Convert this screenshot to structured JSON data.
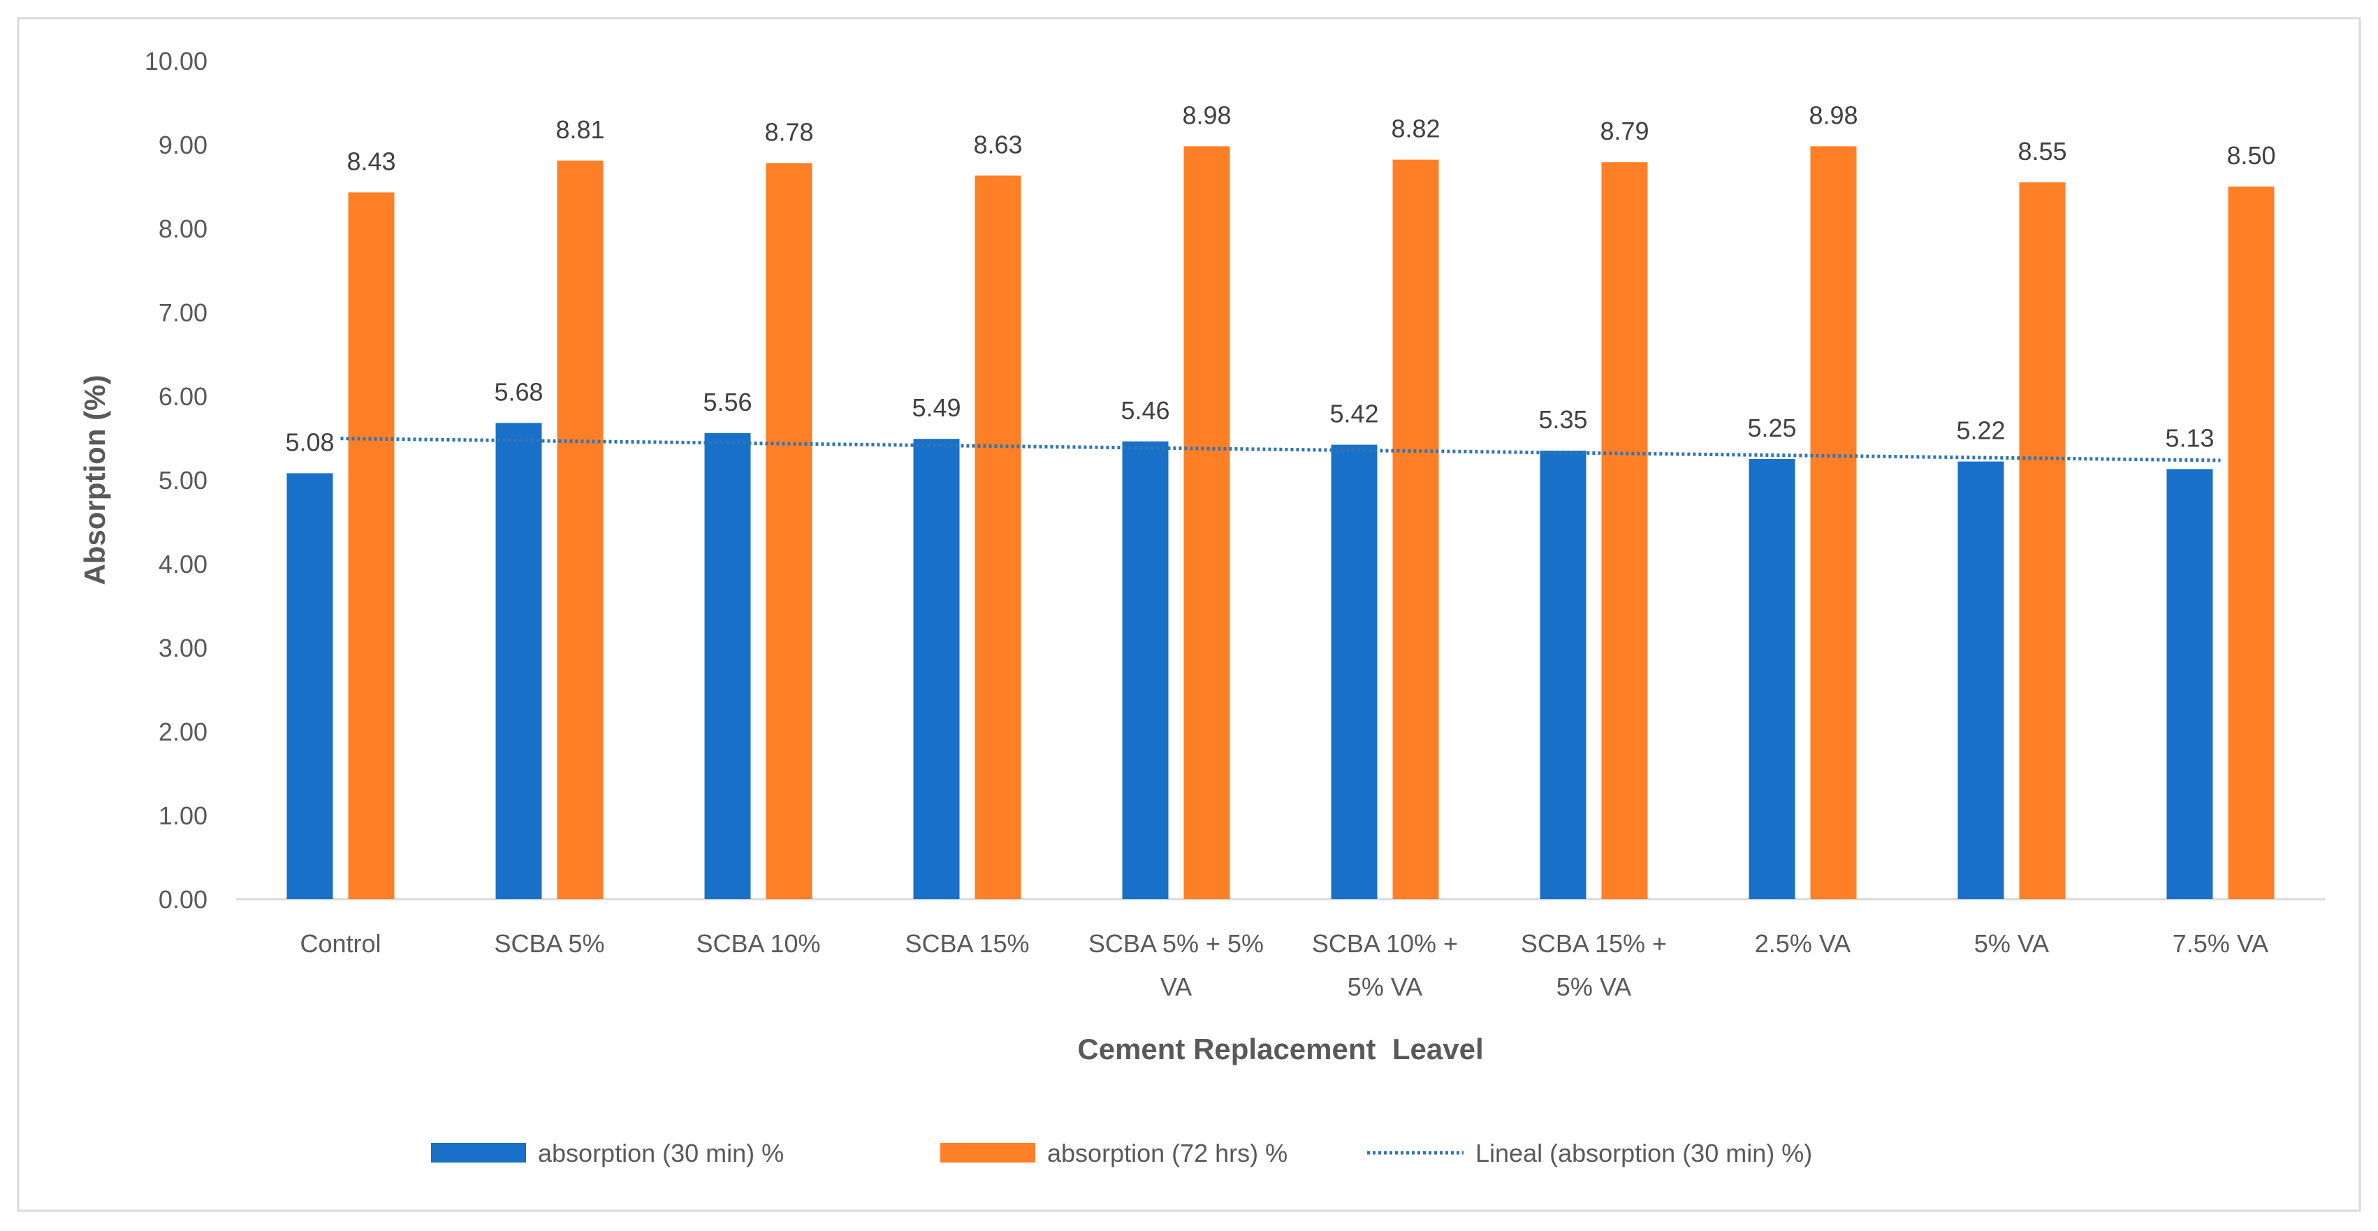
{
  "chart_data": {
    "type": "bar",
    "title": "",
    "xlabel": "Cement Replacement  Leavel",
    "ylabel": "Absorption (%)",
    "ylim": [
      0,
      10
    ],
    "yticks": [
      "0.00",
      "1.00",
      "2.00",
      "3.00",
      "4.00",
      "5.00",
      "6.00",
      "7.00",
      "8.00",
      "9.00",
      "10.00"
    ],
    "grid": false,
    "legend_position": "bottom",
    "categories": [
      [
        "Control"
      ],
      [
        "SCBA 5%"
      ],
      [
        "SCBA 10%"
      ],
      [
        "SCBA 15%"
      ],
      [
        "SCBA 5% + 5%",
        "VA"
      ],
      [
        "SCBA 10% +",
        "5% VA"
      ],
      [
        "SCBA 15% +",
        "5% VA"
      ],
      [
        "2.5% VA"
      ],
      [
        "5% VA"
      ],
      [
        "7.5% VA"
      ]
    ],
    "series": [
      {
        "name": "absorption (30 min) %",
        "color": "#1870C8",
        "values": [
          5.08,
          5.68,
          5.56,
          5.49,
          5.46,
          5.42,
          5.35,
          5.25,
          5.22,
          5.13
        ],
        "labels": [
          "5.08",
          "5.68",
          "5.56",
          "5.49",
          "5.46",
          "5.42",
          "5.35",
          "5.25",
          "5.22",
          "5.13"
        ]
      },
      {
        "name": "absorption (72 hrs) %",
        "color": "#FF7F27",
        "values": [
          8.43,
          8.81,
          8.78,
          8.63,
          8.98,
          8.82,
          8.79,
          8.98,
          8.55,
          8.5
        ],
        "labels": [
          "8.43",
          "8.81",
          "8.78",
          "8.63",
          "8.98",
          "8.82",
          "8.79",
          "8.98",
          "8.55",
          "8.50"
        ]
      }
    ],
    "trendline": {
      "name": "Lineal (absorption (30 min) %)",
      "type": "linear",
      "of_series": 0,
      "color": "#2E75B6"
    }
  }
}
